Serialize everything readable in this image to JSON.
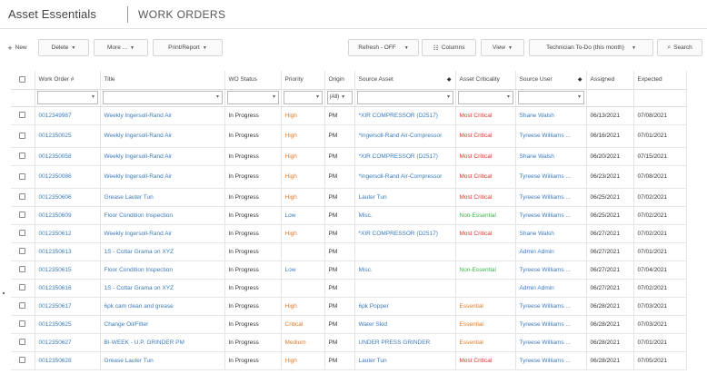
{
  "header": {
    "app_title": "Asset Essentials",
    "page_title": "WORK ORDERS"
  },
  "toolbar": {
    "new": "New",
    "delete": "Delete",
    "more": "More ...",
    "print_report": "Print/Report",
    "refresh": "Refresh - OFF",
    "columns": "Columns",
    "view": "View",
    "view_select": "Technician To-Do (this month)",
    "search": "Search"
  },
  "columns": [
    "Work Order #",
    "Title",
    "WO Status",
    "Priority",
    "Origin",
    "Source Asset",
    "Asset Criticality",
    "Source User",
    "Assigned",
    "Expected"
  ],
  "filter": {
    "origin_value": "(All)"
  },
  "colors": {
    "link": "#3a7bbf",
    "high": "#e07b2a",
    "low": "#3a7bbf",
    "critical": "#e07b2a",
    "most_critical": "#d9362b",
    "non_essential": "#3bb54a",
    "essential": "#e07b2a"
  },
  "rows": [
    {
      "wo": "0012349987",
      "title": "Weekly Ingersoll-Rand Air",
      "status": "In Progress",
      "priority": "High",
      "origin": "PM",
      "asset": "*XIR COMPRESSOR (D2517)",
      "criticality": "Most Critical",
      "user": "Shane Walsh",
      "assigned": "06/13/2021",
      "expected": "07/08/2021"
    },
    {
      "wo": "0012350025",
      "title": "Weekly Ingersoll-Rand Air",
      "status": "In Progress",
      "priority": "High",
      "origin": "PM",
      "asset": "*Ingersoll-Rand Air-Compressor",
      "criticality": "Most Critical",
      "user": "Tyreese Williams ...",
      "assigned": "06/16/2021",
      "expected": "07/01/2021"
    },
    {
      "wo": "0012350058",
      "title": "Weekly Ingersoll-Rand Air",
      "status": "In Progress",
      "priority": "High",
      "origin": "PM",
      "asset": "*XIR COMPRESSOR (D2517)",
      "criticality": "Most Critical",
      "user": "Shane Walsh",
      "assigned": "06/20/2021",
      "expected": "07/15/2021"
    },
    {
      "wo": "0012350086",
      "title": "Weekly Ingersoll-Rand Air",
      "status": "In Progress",
      "priority": "High",
      "origin": "PM",
      "asset": "*Ingersoll-Rand Air-Compressor",
      "criticality": "Most Critical",
      "user": "Tyreese Williams ...",
      "assigned": "06/23/2021",
      "expected": "07/08/2021"
    },
    {
      "wo": "0012350606",
      "title": "Grease Lauter Tun",
      "status": "In Progress",
      "priority": "High",
      "origin": "PM",
      "asset": "Lauter Tun",
      "criticality": "Most Critical",
      "user": "Tyreese Williams ...",
      "assigned": "06/25/2021",
      "expected": "07/02/2021"
    },
    {
      "wo": "0012350609",
      "title": "Floor Condition Inspection",
      "status": "In Progress",
      "priority": "Low",
      "origin": "PM",
      "asset": "Misc.",
      "criticality": "Non-Essential",
      "user": "Tyreese Williams ...",
      "assigned": "06/25/2021",
      "expected": "07/02/2021"
    },
    {
      "wo": "0012350612",
      "title": "Weekly Ingersoll-Rand Air",
      "status": "In Progress",
      "priority": "High",
      "origin": "PM",
      "asset": "*XIR COMPRESSOR (D2517)",
      "criticality": "Most Critical",
      "user": "Shane Walsh",
      "assigned": "06/27/2021",
      "expected": "07/02/2021"
    },
    {
      "wo": "0012350613",
      "title": "1S - Cottar Grama on XYZ",
      "status": "In Progress",
      "priority": "",
      "origin": "PM",
      "asset": "",
      "criticality": "",
      "user": "Admin Admin",
      "assigned": "06/27/2021",
      "expected": "07/01/2021"
    },
    {
      "wo": "0012350615",
      "title": "Floor Condition Inspection",
      "status": "In Progress",
      "priority": "Low",
      "origin": "PM",
      "asset": "Misc.",
      "criticality": "Non-Essential",
      "user": "Tyreese Williams ...",
      "assigned": "06/27/2021",
      "expected": "07/04/2021"
    },
    {
      "wo": "0012350616",
      "title": "1S - Cottar Grama on XYZ",
      "status": "In Progress",
      "priority": "",
      "origin": "PM",
      "asset": "",
      "criticality": "",
      "user": "Admin Admin",
      "assigned": "06/27/2021",
      "expected": "07/02/2021"
    },
    {
      "wo": "0012350617",
      "title": "6pk cam clean and grease",
      "status": "In Progress",
      "priority": "High",
      "origin": "PM",
      "asset": "6pk Popper",
      "criticality": "Essential",
      "user": "Tyreese Williams ...",
      "assigned": "06/28/2021",
      "expected": "07/03/2021"
    },
    {
      "wo": "0012350625",
      "title": "Change Oil/Filter",
      "status": "In Progress",
      "priority": "Critical",
      "origin": "PM",
      "asset": "Water Skid",
      "criticality": "Essential",
      "user": "Tyreese Williams ...",
      "assigned": "06/28/2021",
      "expected": "07/03/2021"
    },
    {
      "wo": "0012350627",
      "title": "BI-WEEK - U.P. GRINDER PM",
      "status": "In Progress",
      "priority": "Medium",
      "origin": "PM",
      "asset": "UNDER PRESS GRINDER",
      "criticality": "Essential",
      "user": "Tyreese Williams ...",
      "assigned": "06/28/2021",
      "expected": "07/01/2021"
    },
    {
      "wo": "0012350628",
      "title": "Grease Lauter Tun",
      "status": "In Progress",
      "priority": "High",
      "origin": "PM",
      "asset": "Lauter Tun",
      "criticality": "Most Critical",
      "user": "Tyreese Williams ...",
      "assigned": "06/28/2021",
      "expected": "07/05/2021"
    }
  ]
}
